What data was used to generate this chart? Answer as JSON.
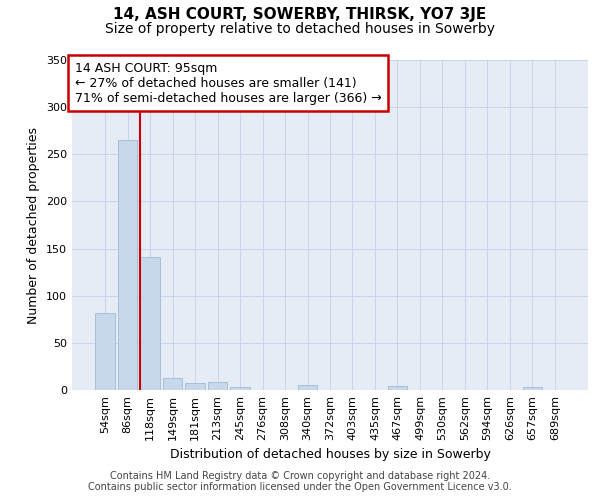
{
  "title": "14, ASH COURT, SOWERBY, THIRSK, YO7 3JE",
  "subtitle": "Size of property relative to detached houses in Sowerby",
  "xlabel": "Distribution of detached houses by size in Sowerby",
  "ylabel": "Number of detached properties",
  "footer_line1": "Contains HM Land Registry data © Crown copyright and database right 2024.",
  "footer_line2": "Contains public sector information licensed under the Open Government Licence v3.0.",
  "categories": [
    "54sqm",
    "86sqm",
    "118sqm",
    "149sqm",
    "181sqm",
    "213sqm",
    "245sqm",
    "276sqm",
    "308sqm",
    "340sqm",
    "372sqm",
    "403sqm",
    "435sqm",
    "467sqm",
    "499sqm",
    "530sqm",
    "562sqm",
    "594sqm",
    "626sqm",
    "657sqm",
    "689sqm"
  ],
  "values": [
    82,
    265,
    141,
    13,
    7,
    9,
    3,
    0,
    0,
    5,
    0,
    0,
    0,
    4,
    0,
    0,
    0,
    0,
    0,
    3,
    0
  ],
  "bar_color": "#c8d8ec",
  "bar_edge_color": "#a8c0d8",
  "property_label": "14 ASH COURT: 95sqm",
  "annotation_line1": "← 27% of detached houses are smaller (141)",
  "annotation_line2": "71% of semi-detached houses are larger (366) →",
  "vline_color": "#cc0000",
  "vline_x_index": 1.57,
  "annotation_box_color": "#ffffff",
  "annotation_box_edge_color": "#cc0000",
  "ylim": [
    0,
    350
  ],
  "yticks": [
    0,
    50,
    100,
    150,
    200,
    250,
    300,
    350
  ],
  "grid_color": "#c8d4e8",
  "background_color": "#e6ecf6",
  "title_fontsize": 11,
  "subtitle_fontsize": 10,
  "annotation_fontsize": 9,
  "ylabel_fontsize": 9,
  "xlabel_fontsize": 9,
  "tick_fontsize": 8,
  "footer_fontsize": 7
}
